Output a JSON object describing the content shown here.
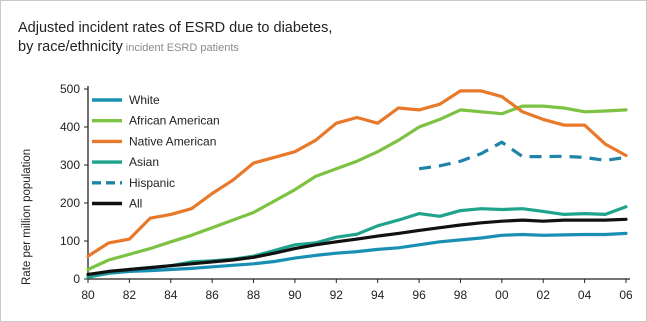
{
  "chart_data": {
    "type": "line",
    "title_line1": "Adjusted incident rates of ESRD due to diabetes,",
    "title_line2": "by race/ethnicity",
    "subtitle": "incident ESRD patients",
    "ylabel": "Rate per million population",
    "xlabel": "",
    "x_tick_labels": [
      "80",
      "82",
      "84",
      "86",
      "88",
      "90",
      "92",
      "94",
      "96",
      "98",
      "00",
      "02",
      "04",
      "06"
    ],
    "x_tick_years": [
      1980,
      1982,
      1984,
      1986,
      1988,
      1990,
      1992,
      1994,
      1996,
      1998,
      2000,
      2002,
      2004,
      2006
    ],
    "y_ticks": [
      0,
      100,
      200,
      300,
      400,
      500
    ],
    "xlim": [
      1980,
      2006
    ],
    "ylim": [
      0,
      500
    ],
    "grid": false,
    "legend_position": "top-left",
    "series": [
      {
        "name": "White",
        "color": "#1a8fb4",
        "dash": false,
        "x": [
          1980,
          1981,
          1982,
          1983,
          1984,
          1985,
          1986,
          1987,
          1988,
          1989,
          1990,
          1991,
          1992,
          1993,
          1994,
          1995,
          1996,
          1997,
          1998,
          1999,
          2000,
          2001,
          2002,
          2003,
          2004,
          2005,
          2006
        ],
        "values": [
          5,
          15,
          20,
          22,
          25,
          28,
          32,
          36,
          40,
          46,
          55,
          62,
          68,
          72,
          78,
          82,
          90,
          98,
          103,
          108,
          115,
          117,
          115,
          116,
          117,
          117,
          120
        ]
      },
      {
        "name": "African American",
        "color": "#7dc242",
        "dash": false,
        "x": [
          1980,
          1981,
          1982,
          1983,
          1984,
          1985,
          1986,
          1987,
          1988,
          1989,
          1990,
          1991,
          1992,
          1993,
          1994,
          1995,
          1996,
          1997,
          1998,
          1999,
          2000,
          2001,
          2002,
          2003,
          2004,
          2005,
          2006
        ],
        "values": [
          25,
          50,
          65,
          80,
          98,
          115,
          135,
          155,
          175,
          205,
          235,
          270,
          290,
          310,
          335,
          365,
          400,
          420,
          445,
          440,
          435,
          455,
          455,
          450,
          440,
          442,
          445
        ]
      },
      {
        "name": "Native American",
        "color": "#e8792b",
        "dash": false,
        "x": [
          1980,
          1981,
          1982,
          1983,
          1984,
          1985,
          1986,
          1987,
          1988,
          1989,
          1990,
          1991,
          1992,
          1993,
          1994,
          1995,
          1996,
          1997,
          1998,
          1999,
          2000,
          2001,
          2002,
          2003,
          2004,
          2005,
          2006
        ],
        "values": [
          60,
          95,
          105,
          160,
          170,
          185,
          225,
          260,
          305,
          320,
          335,
          365,
          410,
          425,
          410,
          450,
          445,
          460,
          495,
          495,
          480,
          440,
          420,
          405,
          405,
          355,
          325
        ]
      },
      {
        "name": "Asian",
        "color": "#1fa38c",
        "dash": false,
        "x": [
          1980,
          1981,
          1982,
          1983,
          1984,
          1985,
          1986,
          1987,
          1988,
          1989,
          1990,
          1991,
          1992,
          1993,
          1994,
          1995,
          1996,
          1997,
          1998,
          1999,
          2000,
          2001,
          2002,
          2003,
          2004,
          2005,
          2006
        ],
        "values": [
          5,
          18,
          25,
          30,
          35,
          45,
          48,
          52,
          60,
          75,
          90,
          95,
          110,
          118,
          140,
          155,
          172,
          165,
          180,
          185,
          183,
          185,
          178,
          170,
          172,
          170,
          190
        ]
      },
      {
        "name": "Hispanic",
        "color": "#1f84a8",
        "dash": true,
        "x": [
          1996,
          1997,
          1998,
          1999,
          2000,
          2001,
          2002,
          2003,
          2004,
          2005,
          2006
        ],
        "values": [
          290,
          298,
          310,
          330,
          360,
          322,
          322,
          323,
          320,
          312,
          320
        ]
      },
      {
        "name": "All",
        "color": "#111111",
        "dash": false,
        "x": [
          1980,
          1981,
          1982,
          1983,
          1984,
          1985,
          1986,
          1987,
          1988,
          1989,
          1990,
          1991,
          1992,
          1993,
          1994,
          1995,
          1996,
          1997,
          1998,
          1999,
          2000,
          2001,
          2002,
          2003,
          2004,
          2005,
          2006
        ],
        "values": [
          12,
          20,
          25,
          30,
          35,
          40,
          45,
          50,
          57,
          68,
          80,
          90,
          98,
          105,
          113,
          120,
          128,
          135,
          142,
          148,
          152,
          155,
          152,
          155,
          155,
          155,
          157
        ]
      }
    ]
  }
}
